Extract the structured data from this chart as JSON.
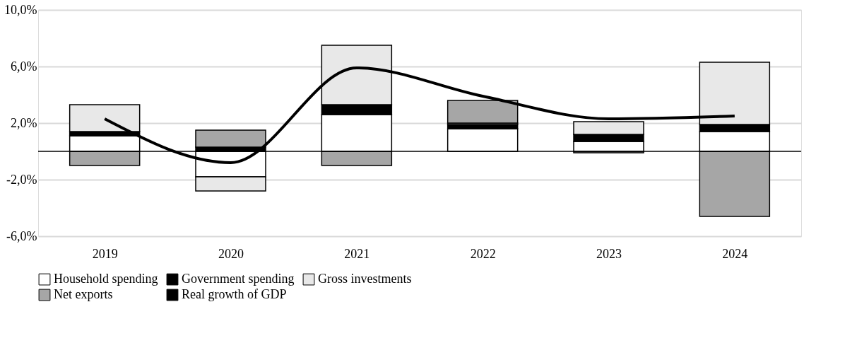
{
  "chart_data": {
    "type": "bar",
    "stacked": true,
    "categories": [
      "2019",
      "2020",
      "2021",
      "2022",
      "2023",
      "2024"
    ],
    "series": [
      {
        "name": "Household spending",
        "color": "#ffffff",
        "values": [
          1.1,
          -1.8,
          2.6,
          1.6,
          0.7,
          1.4
        ]
      },
      {
        "name": "Government spending",
        "color": "#000000",
        "values": [
          0.3,
          0.3,
          0.7,
          0.3,
          0.5,
          0.5
        ]
      },
      {
        "name": "Gross investments",
        "color": "#e8e8e8",
        "values": [
          1.9,
          -1.0,
          4.2,
          0.1,
          0.9,
          4.4
        ]
      },
      {
        "name": "Net exports",
        "color": "#a6a6a6",
        "values": [
          -1.0,
          1.2,
          -1.0,
          1.6,
          -0.1,
          -4.6
        ]
      },
      {
        "name": "Real growth of GDP",
        "type": "line",
        "color": "#000000",
        "values": [
          2.3,
          -0.8,
          5.9,
          3.9,
          2.3,
          2.5
        ]
      }
    ],
    "ylim": [
      -6,
      10
    ],
    "yticks": [
      {
        "value": -6,
        "label": "-6,0%"
      },
      {
        "value": -2,
        "label": "-2,0%"
      },
      {
        "value": 2,
        "label": "2,0%"
      },
      {
        "value": 6,
        "label": "6,0%"
      },
      {
        "value": 10,
        "label": "10,0%"
      }
    ],
    "grid": "y",
    "legend": "bottom"
  }
}
